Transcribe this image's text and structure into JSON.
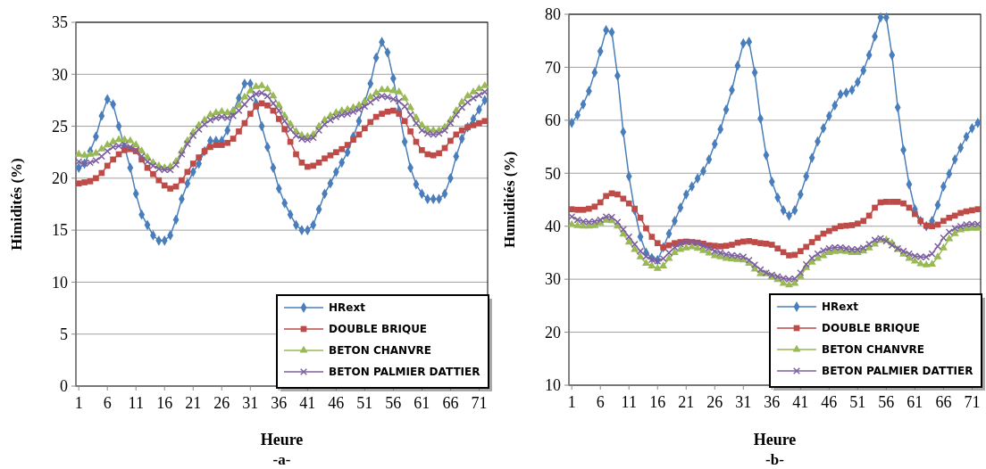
{
  "chart_data": [
    {
      "type": "line",
      "ylabel": "Himidités (%)",
      "xlabel": "Heure",
      "annotations": [
        "-a-"
      ],
      "grid": "y",
      "legend": "bottom right",
      "ylim": [
        0,
        35
      ],
      "yticks": [
        0,
        5,
        10,
        15,
        20,
        25,
        30,
        35
      ],
      "xlim": [
        0.5,
        72.5
      ],
      "xticks": [
        1,
        6,
        11,
        16,
        21,
        26,
        31,
        36,
        41,
        46,
        51,
        56,
        61,
        66,
        71
      ],
      "x": [
        1,
        2,
        3,
        4,
        5,
        6,
        7,
        8,
        9,
        10,
        11,
        12,
        13,
        14,
        15,
        16,
        17,
        18,
        19,
        20,
        21,
        22,
        23,
        24,
        25,
        26,
        27,
        28,
        29,
        30,
        31,
        32,
        33,
        34,
        35,
        36,
        37,
        38,
        39,
        40,
        41,
        42,
        43,
        44,
        45,
        46,
        47,
        48,
        49,
        50,
        51,
        52,
        53,
        54,
        55,
        56,
        57,
        58,
        59,
        60,
        61,
        62,
        63,
        64,
        65,
        66,
        67,
        68,
        69,
        70,
        71,
        72
      ],
      "series": [
        {
          "name": "HRext",
          "color": "#4a7ebb",
          "marker": "diamond",
          "values": [
            21,
            21.4,
            22.6,
            24,
            26,
            27.6,
            27.1,
            25,
            23,
            21,
            18.5,
            16.5,
            15.5,
            14.5,
            14,
            14,
            14.5,
            16,
            18,
            19.5,
            20.6,
            21.4,
            22.6,
            23.6,
            23.6,
            23.6,
            24.6,
            26.4,
            27.7,
            29.1,
            29.1,
            27.2,
            25,
            23,
            21,
            19,
            17.6,
            16.5,
            15.5,
            15,
            15,
            15.5,
            17,
            18.5,
            19.5,
            20.6,
            21.5,
            22.5,
            24,
            25.5,
            27.3,
            29.1,
            31.6,
            33.1,
            32.1,
            29.6,
            26.5,
            23.5,
            21,
            19.4,
            18.5,
            18,
            18,
            18,
            18.5,
            20,
            22.1,
            23.8,
            24.9,
            25.7,
            26.6,
            27.5
          ]
        },
        {
          "name": "DOUBLE BRIQUE",
          "color": "#be4b48",
          "marker": "square",
          "values": [
            19.5,
            19.6,
            19.7,
            20,
            20.5,
            21.2,
            21.8,
            22.3,
            22.7,
            22.8,
            22.6,
            21.8,
            21,
            20.4,
            19.8,
            19.3,
            19,
            19.2,
            19.8,
            20.6,
            21.4,
            22,
            22.6,
            23,
            23.2,
            23.2,
            23.4,
            23.8,
            24.5,
            25.3,
            26.2,
            26.9,
            27.2,
            27,
            26.5,
            25.7,
            24.7,
            23.5,
            22.3,
            21.5,
            21.1,
            21.2,
            21.5,
            21.9,
            22.2,
            22.5,
            22.8,
            23.2,
            23.7,
            24.2,
            24.8,
            25.4,
            25.9,
            26.2,
            26.4,
            26.5,
            26.2,
            25.5,
            24.5,
            23.5,
            22.7,
            22.3,
            22.2,
            22.4,
            22.9,
            23.6,
            24.2,
            24.6,
            24.9,
            25.1,
            25.3,
            25.5
          ]
        },
        {
          "name": "BETON CHANVRE",
          "color": "#98b954",
          "marker": "triangle",
          "values": [
            22.3,
            22.2,
            22.3,
            22.4,
            22.8,
            23.2,
            23.5,
            23.7,
            23.7,
            23.6,
            23.2,
            22.6,
            22,
            21.5,
            21.2,
            21,
            21.1,
            21.6,
            22.6,
            23.6,
            24.4,
            25.1,
            25.6,
            26.1,
            26.3,
            26.4,
            26.3,
            26.5,
            27,
            27.8,
            28.4,
            28.8,
            28.9,
            28.6,
            27.9,
            27,
            26,
            25.2,
            24.5,
            24.1,
            24,
            24.2,
            25,
            25.6,
            26,
            26.3,
            26.5,
            26.6,
            26.8,
            27,
            27.3,
            27.8,
            28.2,
            28.5,
            28.5,
            28.4,
            28.3,
            27.7,
            26.8,
            25.8,
            25.1,
            24.7,
            24.6,
            24.6,
            24.9,
            25.6,
            26.5,
            27.3,
            27.9,
            28.3,
            28.6,
            28.9
          ]
        },
        {
          "name": "BETON PALMIER DATTIER",
          "color": "#7d60a0",
          "marker": "cross",
          "values": [
            21.6,
            21.4,
            21.5,
            21.7,
            22.1,
            22.6,
            23,
            23.1,
            23.2,
            23,
            22.7,
            22.1,
            21.6,
            21.2,
            20.9,
            20.8,
            20.8,
            21.3,
            22.3,
            23.3,
            24.1,
            24.7,
            25.2,
            25.6,
            25.8,
            25.9,
            25.8,
            26,
            26.5,
            27.1,
            27.7,
            28.1,
            28.2,
            27.9,
            27.2,
            26.5,
            25.5,
            24.7,
            24.1,
            23.8,
            23.7,
            23.9,
            24.6,
            25.2,
            25.6,
            25.9,
            26.1,
            26.2,
            26.4,
            26.6,
            26.9,
            27.3,
            27.7,
            27.9,
            27.8,
            27.6,
            27.4,
            26.9,
            26.1,
            25.3,
            24.6,
            24.3,
            24.2,
            24.3,
            24.6,
            25.3,
            26.1,
            26.8,
            27.3,
            27.7,
            28,
            28.3
          ]
        }
      ]
    },
    {
      "type": "line",
      "ylabel": "Humidités (%)",
      "xlabel": "Heure",
      "annotations": [
        "-b-"
      ],
      "grid": "y",
      "legend": "bottom right",
      "ylim": [
        10,
        80
      ],
      "yticks": [
        10,
        20,
        30,
        40,
        50,
        60,
        70,
        80
      ],
      "xlim": [
        0.5,
        72.5
      ],
      "xticks": [
        1,
        6,
        11,
        16,
        21,
        26,
        31,
        36,
        41,
        46,
        51,
        56,
        61,
        66,
        71
      ],
      "x": [
        1,
        2,
        3,
        4,
        5,
        6,
        7,
        8,
        9,
        10,
        11,
        12,
        13,
        14,
        15,
        16,
        17,
        18,
        19,
        20,
        21,
        22,
        23,
        24,
        25,
        26,
        27,
        28,
        29,
        30,
        31,
        32,
        33,
        34,
        35,
        36,
        37,
        38,
        39,
        40,
        41,
        42,
        43,
        44,
        45,
        46,
        47,
        48,
        49,
        50,
        51,
        52,
        53,
        54,
        55,
        56,
        57,
        58,
        59,
        60,
        61,
        62,
        63,
        64,
        65,
        66,
        67,
        68,
        69,
        70,
        71,
        72
      ],
      "series": [
        {
          "name": "HRext",
          "color": "#4a7ebb",
          "marker": "diamond",
          "values": [
            59.5,
            61,
            63,
            65.5,
            69,
            73,
            77,
            76.6,
            68.4,
            57.8,
            49.4,
            43,
            38,
            35,
            34,
            33.6,
            36,
            38.6,
            41,
            43.5,
            46,
            47.5,
            49,
            50.4,
            52.6,
            55.5,
            58.3,
            62,
            65.7,
            70.3,
            74.5,
            74.8,
            69,
            60.3,
            53.4,
            48.4,
            45.4,
            43,
            42,
            43,
            46,
            49.4,
            52.9,
            56,
            58.5,
            60.8,
            62.8,
            64.9,
            65.2,
            65.7,
            67.2,
            69.4,
            72.3,
            75.8,
            79.4,
            79.4,
            72.3,
            62.4,
            54.4,
            47.9,
            43.2,
            41,
            40,
            41,
            44,
            47.5,
            49.9,
            52.6,
            54.8,
            56.9,
            58.5,
            59.5
          ]
        },
        {
          "name": "DOUBLE BRIQUE",
          "color": "#be4b48",
          "marker": "square",
          "values": [
            43.2,
            43.1,
            43.1,
            43.3,
            43.7,
            44.5,
            45.7,
            46.2,
            46,
            45.2,
            44.3,
            43.3,
            41.6,
            39.6,
            38,
            36.8,
            36,
            36.4,
            36.8,
            37,
            37.1,
            37,
            36.9,
            36.7,
            36.4,
            36.3,
            36.2,
            36.3,
            36.5,
            36.9,
            37.1,
            37.2,
            37,
            36.8,
            36.7,
            36.5,
            35.8,
            35.1,
            34.5,
            34.6,
            35.3,
            36.1,
            37,
            37.8,
            38.6,
            39.1,
            39.6,
            40,
            40.1,
            40.2,
            40.5,
            41,
            42,
            43.5,
            44.5,
            44.6,
            44.6,
            44.6,
            44.3,
            43.5,
            42.3,
            41,
            40.1,
            40,
            40.3,
            41,
            41.6,
            42,
            42.5,
            42.8,
            43,
            43.2
          ]
        },
        {
          "name": "BETON CHANVRE",
          "color": "#98b954",
          "marker": "triangle",
          "values": [
            40.3,
            40.1,
            40,
            40,
            40.1,
            40.6,
            41.1,
            41,
            40,
            38.5,
            37,
            35.6,
            34.2,
            33,
            32.5,
            32,
            32.5,
            33.9,
            35,
            35.6,
            35.9,
            36.1,
            35.8,
            35.4,
            34.9,
            34.4,
            34.2,
            33.9,
            33.8,
            33.7,
            33.6,
            33,
            31.9,
            31,
            31,
            30.4,
            29.9,
            29.2,
            28.9,
            29.2,
            30.5,
            32.2,
            33.2,
            33.9,
            34.4,
            35,
            35.2,
            35.3,
            35.2,
            35,
            35,
            35.3,
            35.9,
            36.6,
            37.3,
            37.4,
            36.8,
            35.6,
            34.7,
            33.9,
            33.4,
            32.9,
            32.7,
            32.8,
            34.2,
            35.9,
            37.6,
            38.6,
            39.3,
            39.5,
            39.6,
            39.6
          ]
        },
        {
          "name": "BETON PALMIER DATTIER",
          "color": "#7d60a0",
          "marker": "cross",
          "values": [
            41.8,
            41.2,
            40.9,
            40.8,
            40.9,
            41.2,
            41.8,
            41.7,
            40.8,
            39.4,
            38,
            36.6,
            35.3,
            34.3,
            33.7,
            33.4,
            33.9,
            35,
            36,
            36.6,
            37,
            37,
            36.8,
            36.3,
            35.9,
            35.3,
            35,
            34.7,
            34.5,
            34.4,
            34.2,
            33.6,
            32.7,
            31.8,
            31.2,
            30.8,
            30.5,
            30.2,
            30,
            30.1,
            31.2,
            32.8,
            34,
            34.8,
            35.4,
            35.8,
            36,
            36,
            35.8,
            35.6,
            35.6,
            35.9,
            36.6,
            37.4,
            37.7,
            37.2,
            36.4,
            35.8,
            35.3,
            34.8,
            34.4,
            34.2,
            34.2,
            34.8,
            36.2,
            37.8,
            38.9,
            39.6,
            40,
            40.3,
            40.4,
            40.4
          ]
        }
      ]
    }
  ]
}
